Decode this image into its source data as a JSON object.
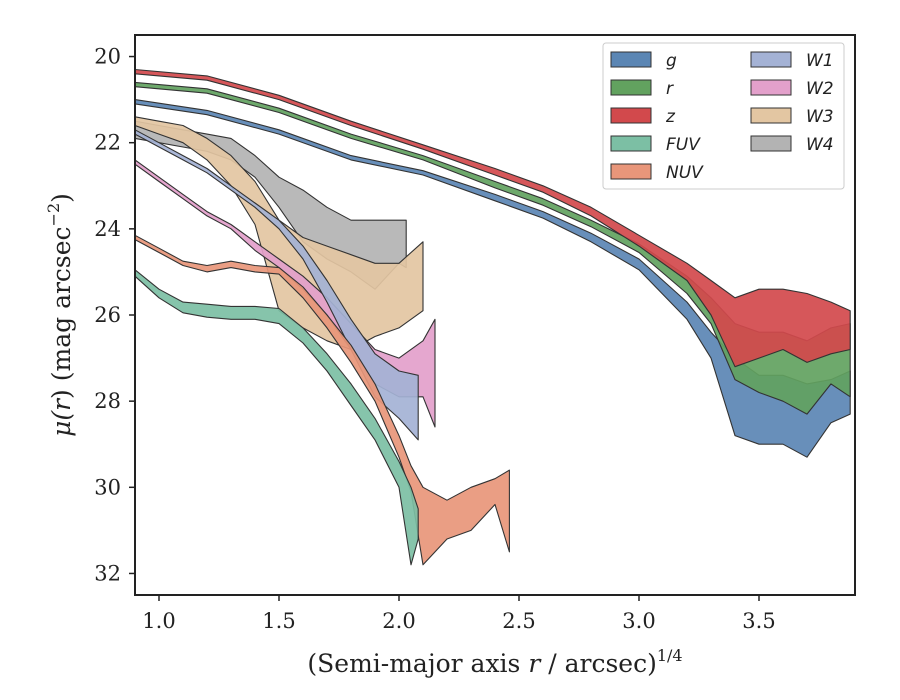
{
  "chart_data": {
    "type": "area",
    "title": "",
    "xlabel": "(Semi-major axis r / arcsec)^1/4",
    "xlabel_parts": {
      "pre": "(Semi-major axis ",
      "var": "r",
      "mid": " / arcsec)",
      "sup": "1/4"
    },
    "ylabel": "μ(r) (mag arcsec^-2)",
    "ylabel_parts": {
      "mu": "μ(",
      "var": "r",
      "close": ")",
      "unit": " (mag arcsec",
      "sup": "−2",
      "end": ")"
    },
    "xlim": [
      0.9,
      3.9
    ],
    "ylim": [
      32.5,
      19.5
    ],
    "y_inverted": true,
    "grid": false,
    "legend_position": "top-right",
    "legend_columns": 2,
    "x_ticks": [
      {
        "value": 1.0,
        "label": "1.0"
      },
      {
        "value": 1.5,
        "label": "1.5"
      },
      {
        "value": 2.0,
        "label": "2.0"
      },
      {
        "value": 2.5,
        "label": "2.5"
      },
      {
        "value": 3.0,
        "label": "3.0"
      },
      {
        "value": 3.5,
        "label": "3.5"
      }
    ],
    "y_ticks": [
      {
        "value": 20,
        "label": "20"
      },
      {
        "value": 22,
        "label": "22"
      },
      {
        "value": 24,
        "label": "24"
      },
      {
        "value": 26,
        "label": "26"
      },
      {
        "value": 28,
        "label": "28"
      },
      {
        "value": 30,
        "label": "30"
      },
      {
        "value": 32,
        "label": "32"
      }
    ],
    "series": [
      {
        "name": "W4",
        "color": "#b3b3b3",
        "points": [
          [
            0.9,
            21.5,
            21.9
          ],
          [
            1.0,
            21.6,
            22.0
          ],
          [
            1.1,
            21.7,
            22.1
          ],
          [
            1.2,
            21.8,
            22.2
          ],
          [
            1.3,
            21.9,
            22.4
          ],
          [
            1.4,
            22.3,
            22.8
          ],
          [
            1.5,
            22.8,
            23.5
          ],
          [
            1.6,
            23.1,
            24.3
          ],
          [
            1.7,
            23.5,
            24.7
          ],
          [
            1.8,
            23.8,
            25.0
          ],
          [
            1.9,
            23.8,
            25.4
          ],
          [
            2.0,
            23.8,
            24.8
          ],
          [
            2.03,
            23.8,
            24.9
          ]
        ]
      },
      {
        "name": "W3",
        "color": "#e3c6a2",
        "points": [
          [
            0.9,
            21.4,
            21.6
          ],
          [
            1.0,
            21.5,
            21.8
          ],
          [
            1.1,
            21.6,
            22.0
          ],
          [
            1.2,
            21.9,
            22.4
          ],
          [
            1.3,
            22.3,
            23.0
          ],
          [
            1.4,
            22.9,
            23.9
          ],
          [
            1.5,
            23.8,
            25.9
          ],
          [
            1.6,
            24.2,
            26.3
          ],
          [
            1.7,
            24.4,
            26.6
          ],
          [
            1.8,
            24.6,
            26.8
          ],
          [
            1.9,
            24.8,
            26.5
          ],
          [
            2.0,
            24.8,
            26.3
          ],
          [
            2.1,
            24.3,
            25.9
          ]
        ]
      },
      {
        "name": "W2",
        "color": "#e3a0cb",
        "points": [
          [
            0.9,
            22.4,
            22.5
          ],
          [
            1.0,
            22.8,
            22.9
          ],
          [
            1.1,
            23.2,
            23.3
          ],
          [
            1.2,
            23.6,
            23.7
          ],
          [
            1.3,
            23.9,
            24.0
          ],
          [
            1.4,
            24.3,
            24.5
          ],
          [
            1.5,
            24.7,
            24.9
          ],
          [
            1.6,
            25.1,
            25.4
          ],
          [
            1.7,
            25.6,
            26.0
          ],
          [
            1.8,
            26.2,
            26.8
          ],
          [
            1.9,
            26.8,
            27.6
          ],
          [
            2.0,
            27.0,
            27.9
          ],
          [
            2.1,
            26.6,
            27.9
          ],
          [
            2.15,
            26.1,
            28.6
          ]
        ]
      },
      {
        "name": "W1",
        "color": "#a4b2d5",
        "points": [
          [
            0.9,
            21.7,
            21.8
          ],
          [
            1.0,
            22.0,
            22.1
          ],
          [
            1.1,
            22.3,
            22.4
          ],
          [
            1.2,
            22.6,
            22.7
          ],
          [
            1.3,
            23.0,
            23.1
          ],
          [
            1.4,
            23.4,
            23.5
          ],
          [
            1.5,
            23.8,
            24.0
          ],
          [
            1.6,
            24.4,
            24.7
          ],
          [
            1.7,
            25.2,
            25.7
          ],
          [
            1.8,
            26.1,
            26.8
          ],
          [
            1.9,
            26.9,
            27.9
          ],
          [
            2.0,
            27.3,
            28.4
          ],
          [
            2.08,
            27.4,
            28.9
          ]
        ]
      },
      {
        "name": "NUV",
        "color": "#e8967a",
        "points": [
          [
            0.9,
            24.15,
            24.25
          ],
          [
            1.0,
            24.45,
            24.55
          ],
          [
            1.1,
            24.75,
            24.85
          ],
          [
            1.2,
            24.85,
            25.0
          ],
          [
            1.3,
            24.75,
            24.9
          ],
          [
            1.4,
            24.85,
            25.0
          ],
          [
            1.5,
            24.9,
            25.05
          ],
          [
            1.6,
            25.35,
            25.6
          ],
          [
            1.7,
            26.0,
            26.3
          ],
          [
            1.8,
            26.7,
            27.1
          ],
          [
            1.9,
            27.6,
            28.0
          ],
          [
            2.0,
            28.8,
            29.3
          ],
          [
            2.05,
            29.5,
            30.1
          ],
          [
            2.1,
            30.0,
            31.8
          ],
          [
            2.2,
            30.3,
            31.2
          ],
          [
            2.3,
            30.0,
            31.0
          ],
          [
            2.4,
            29.8,
            30.4
          ],
          [
            2.46,
            29.6,
            31.5
          ]
        ]
      },
      {
        "name": "FUV",
        "color": "#7cbfa4",
        "points": [
          [
            0.9,
            24.95,
            25.1
          ],
          [
            1.0,
            25.4,
            25.6
          ],
          [
            1.1,
            25.7,
            25.95
          ],
          [
            1.2,
            25.75,
            26.05
          ],
          [
            1.3,
            25.8,
            26.1
          ],
          [
            1.4,
            25.8,
            26.1
          ],
          [
            1.5,
            25.85,
            26.2
          ],
          [
            1.6,
            26.3,
            26.65
          ],
          [
            1.7,
            26.9,
            27.3
          ],
          [
            1.8,
            27.6,
            28.1
          ],
          [
            1.9,
            28.4,
            28.9
          ],
          [
            2.0,
            29.4,
            30.0
          ],
          [
            2.05,
            30.0,
            31.8
          ],
          [
            2.08,
            30.5,
            31.2
          ]
        ]
      },
      {
        "name": "g",
        "color": "#5b86b4",
        "points": [
          [
            0.9,
            21.0,
            21.1
          ],
          [
            1.2,
            21.25,
            21.35
          ],
          [
            1.5,
            21.7,
            21.8
          ],
          [
            1.8,
            22.3,
            22.4
          ],
          [
            2.1,
            22.65,
            22.75
          ],
          [
            2.4,
            23.2,
            23.35
          ],
          [
            2.6,
            23.6,
            23.75
          ],
          [
            2.8,
            24.1,
            24.3
          ],
          [
            3.0,
            24.7,
            24.95
          ],
          [
            3.2,
            25.7,
            26.1
          ],
          [
            3.3,
            26.4,
            27.0
          ],
          [
            3.4,
            27.0,
            28.8
          ],
          [
            3.5,
            27.4,
            29.0
          ],
          [
            3.6,
            27.4,
            29.0
          ],
          [
            3.7,
            27.6,
            29.3
          ],
          [
            3.8,
            27.5,
            28.5
          ],
          [
            3.88,
            27.3,
            28.3
          ]
        ]
      },
      {
        "name": "r",
        "color": "#62a25f",
        "points": [
          [
            0.9,
            20.6,
            20.7
          ],
          [
            1.2,
            20.75,
            20.85
          ],
          [
            1.5,
            21.2,
            21.3
          ],
          [
            1.8,
            21.8,
            21.9
          ],
          [
            2.1,
            22.3,
            22.4
          ],
          [
            2.4,
            22.9,
            23.05
          ],
          [
            2.6,
            23.3,
            23.45
          ],
          [
            2.8,
            23.8,
            23.95
          ],
          [
            3.0,
            24.35,
            24.55
          ],
          [
            3.2,
            25.1,
            25.5
          ],
          [
            3.3,
            25.6,
            26.2
          ],
          [
            3.4,
            26.2,
            27.5
          ],
          [
            3.5,
            26.4,
            27.8
          ],
          [
            3.6,
            26.4,
            28.0
          ],
          [
            3.7,
            26.6,
            28.3
          ],
          [
            3.8,
            26.3,
            27.6
          ],
          [
            3.88,
            26.2,
            27.9
          ]
        ]
      },
      {
        "name": "z",
        "color": "#d2494c",
        "points": [
          [
            0.9,
            20.3,
            20.4
          ],
          [
            1.2,
            20.45,
            20.55
          ],
          [
            1.5,
            20.9,
            21.0
          ],
          [
            1.8,
            21.5,
            21.6
          ],
          [
            2.1,
            22.05,
            22.15
          ],
          [
            2.4,
            22.6,
            22.75
          ],
          [
            2.6,
            23.0,
            23.15
          ],
          [
            2.8,
            23.5,
            23.7
          ],
          [
            3.0,
            24.15,
            24.4
          ],
          [
            3.2,
            24.8,
            25.2
          ],
          [
            3.3,
            25.2,
            26.0
          ],
          [
            3.4,
            25.6,
            27.2
          ],
          [
            3.5,
            25.4,
            27.0
          ],
          [
            3.6,
            25.4,
            26.8
          ],
          [
            3.7,
            25.5,
            27.1
          ],
          [
            3.8,
            25.7,
            26.9
          ],
          [
            3.88,
            25.9,
            26.8
          ]
        ]
      }
    ],
    "legend": {
      "columns": [
        [
          "g",
          "r",
          "z",
          "FUV",
          "NUV"
        ],
        [
          "W1",
          "W2",
          "W3",
          "W4"
        ]
      ]
    }
  }
}
